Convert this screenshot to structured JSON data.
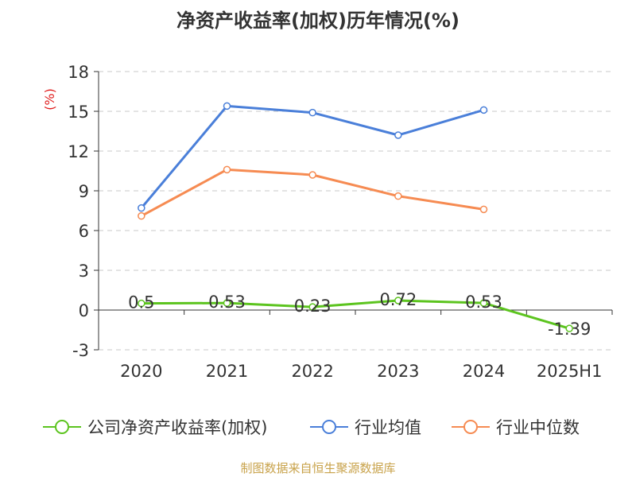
{
  "chart_data": {
    "type": "line",
    "title": "净资产收益率(加权)历年情况(%)",
    "ylabel": "(%)",
    "xlabel": "",
    "categories": [
      "2020",
      "2021",
      "2022",
      "2023",
      "2024",
      "2025H1"
    ],
    "yticks": [
      -3,
      0,
      3,
      6,
      9,
      12,
      15,
      18
    ],
    "ylim": [
      -3,
      18
    ],
    "grid": "horizontal-dashed",
    "legend_position": "bottom",
    "series": [
      {
        "name": "公司净资产收益率(加权)",
        "color": "#5cc41f",
        "values": [
          0.5,
          0.53,
          0.23,
          0.72,
          0.53,
          -1.39
        ],
        "labels": [
          "0.5",
          "0.53",
          "0.23",
          "0.72",
          "0.53",
          "-1.39"
        ]
      },
      {
        "name": "行业均值",
        "color": "#4a7fd9",
        "values": [
          7.7,
          15.4,
          14.9,
          13.2,
          15.1,
          null
        ]
      },
      {
        "name": "行业中位数",
        "color": "#f68b52",
        "values": [
          7.1,
          10.6,
          10.2,
          8.6,
          7.6,
          null
        ]
      }
    ]
  },
  "footer": {
    "source": "制图数据来自恒生聚源数据库"
  }
}
